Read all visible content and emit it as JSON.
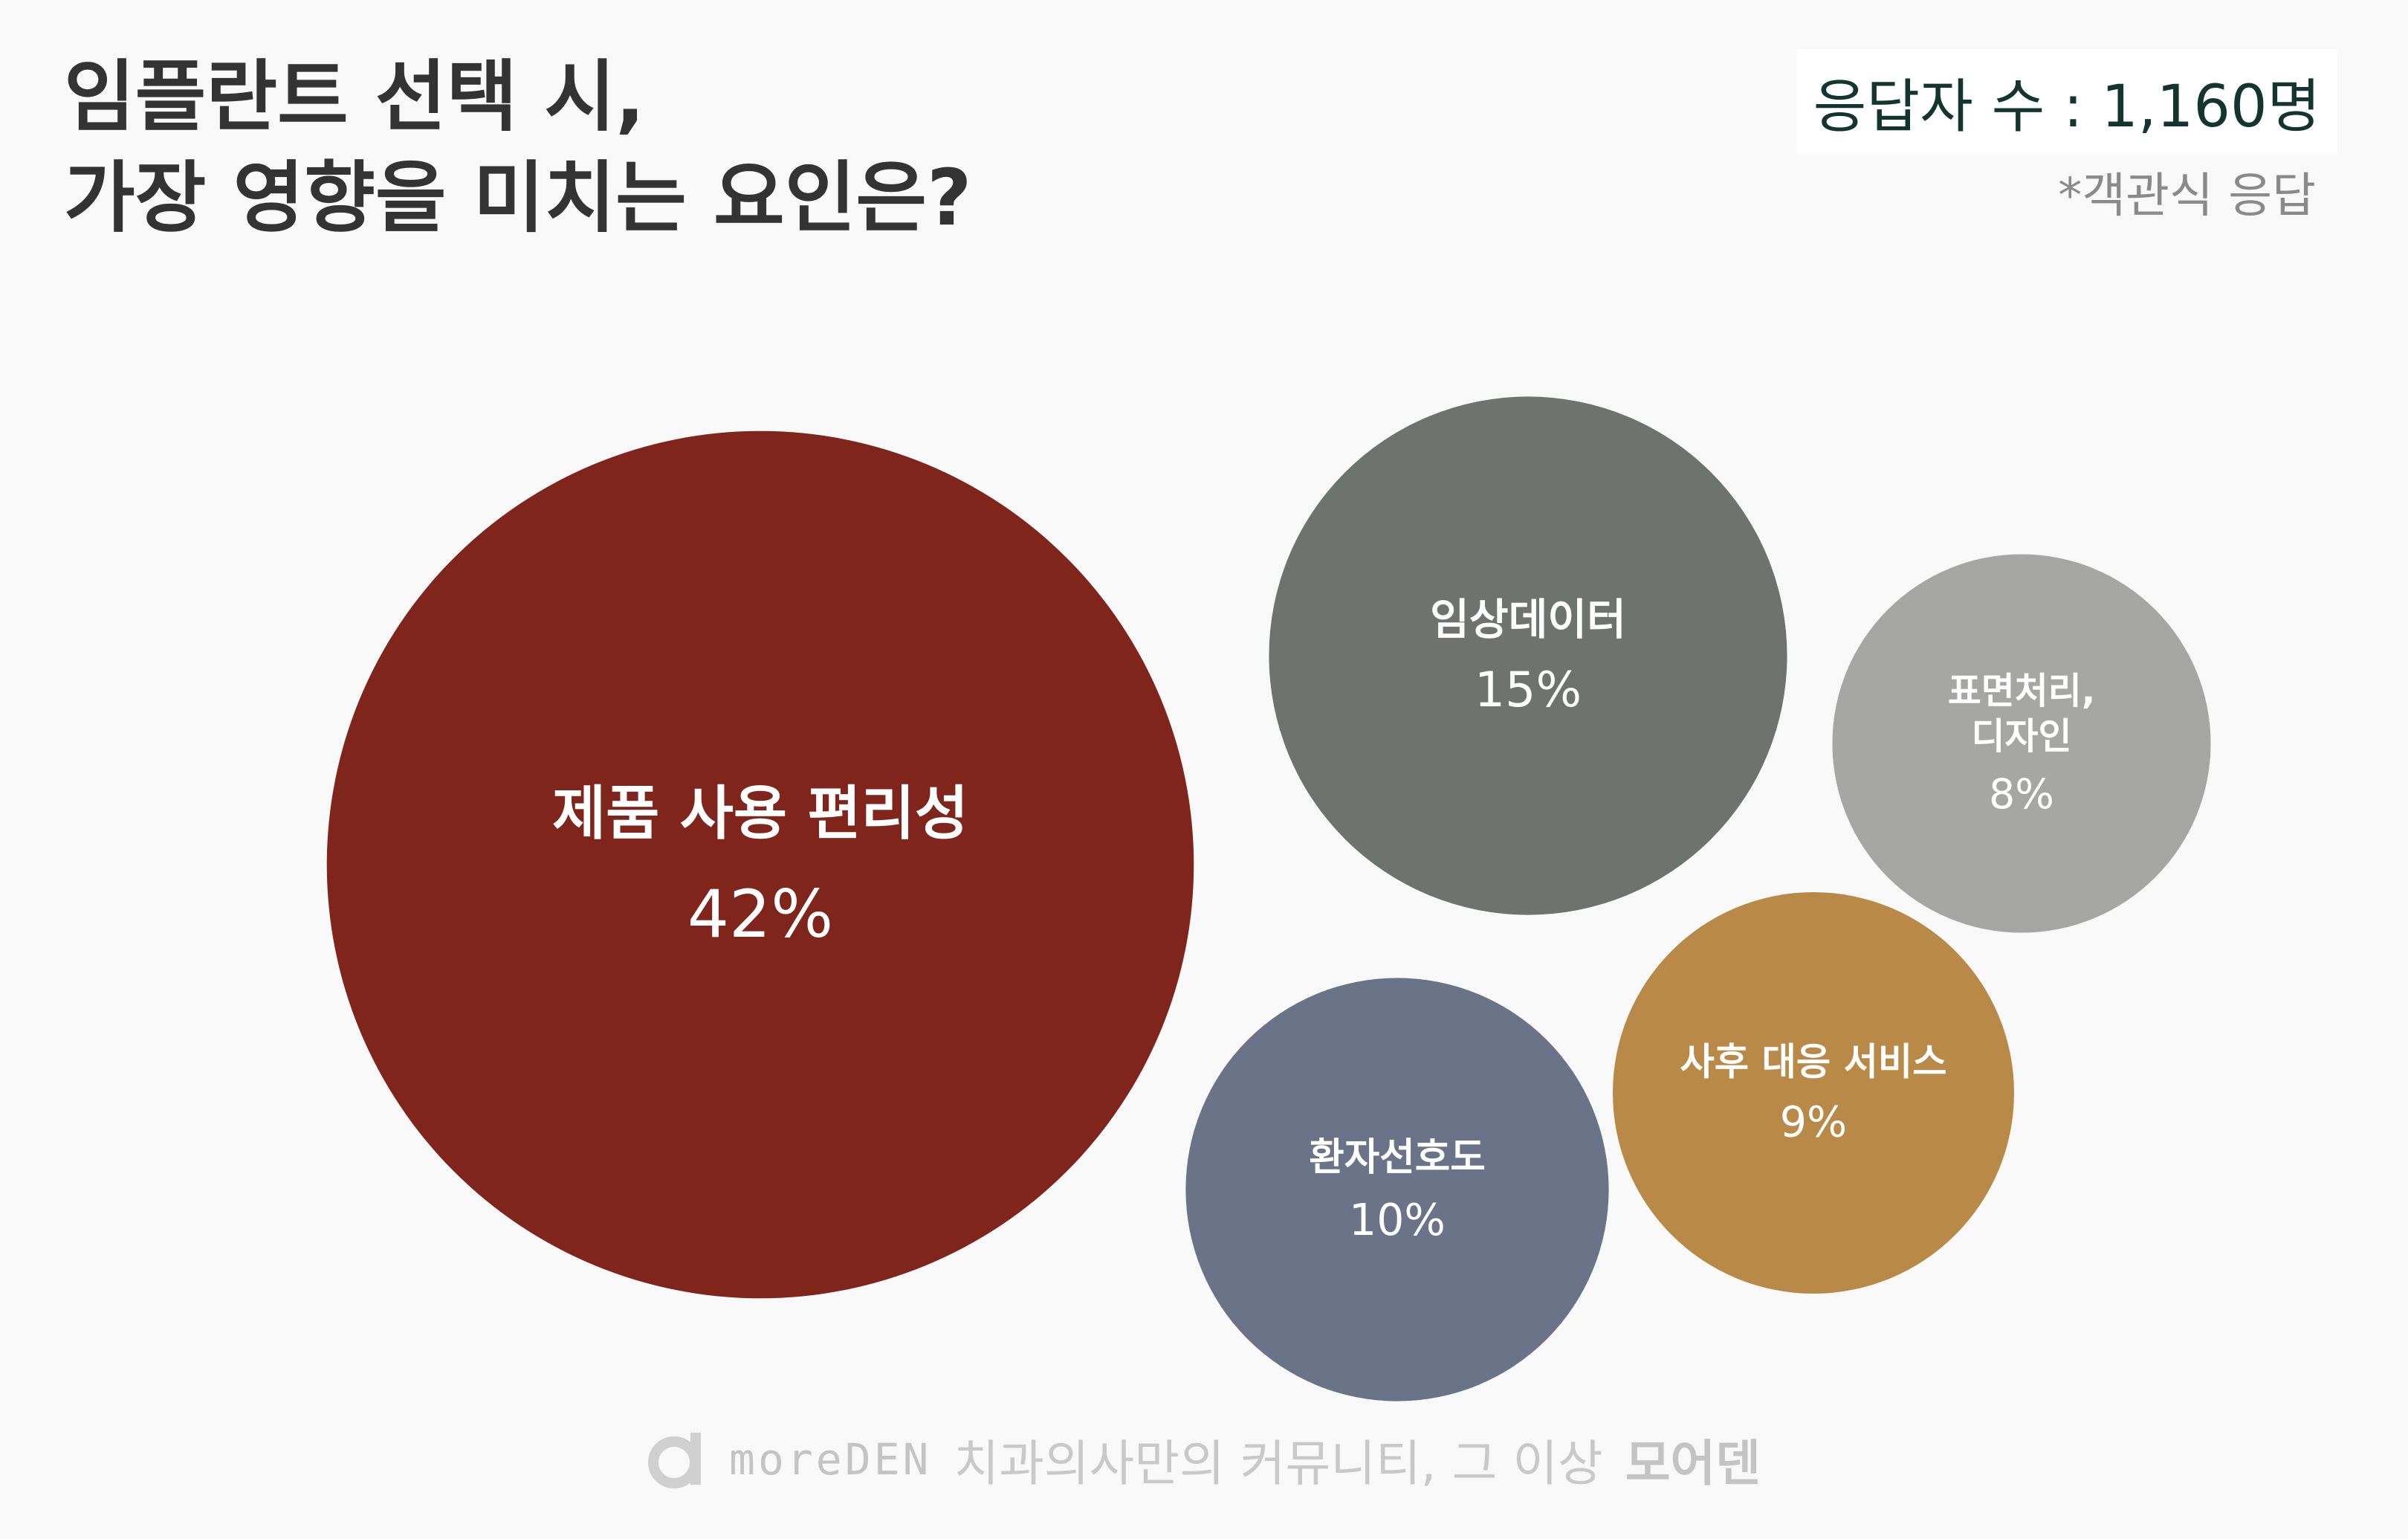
{
  "chart_data": {
    "type": "bubble",
    "title": "임플란트 선택 시,\n가장 영향을 미치는 요인은?",
    "respondents": "응답자 수 : 1,160명",
    "note": "*객관식 응답",
    "categories": [
      "제품 사용 편리성",
      "임상데이터",
      "표면처리,\n디자인",
      "사후 대응 서비스",
      "환자선호도"
    ],
    "values": [
      42,
      15,
      8,
      9,
      10
    ],
    "value_labels": [
      "42%",
      "15%",
      "8%",
      "9%",
      "10%"
    ],
    "colors": [
      "#7f251c",
      "#6f7370",
      "#a6a6a4",
      "#b98a47",
      "#6b7389"
    ]
  },
  "footer": {
    "brand": "moreDEN",
    "tagline": "치과의사만의 커뮤니티, 그 이상",
    "name": "모어덴"
  }
}
